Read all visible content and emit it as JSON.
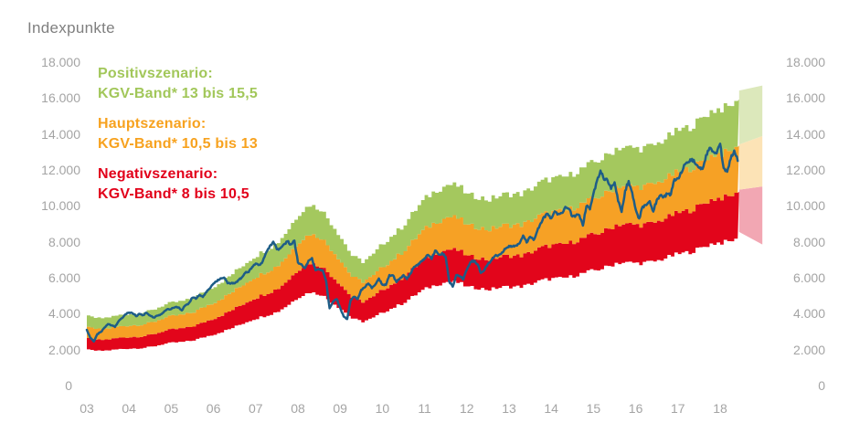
{
  "title": "Indexpunkte",
  "legend": [
    {
      "line1": "Positivszenario:",
      "line2": "KGV-Band* 13 bis 15,5",
      "color": "#a2c75a"
    },
    {
      "line1": "Hauptszenario:",
      "line2": "KGV-Band* 10,5 bis 13",
      "color": "#f7a21f"
    },
    {
      "line1": "Negativszenario:",
      "line2": "KGV-Band* 8 bis 10,5",
      "color": "#e2001a"
    }
  ],
  "chart_data": {
    "type": "area",
    "title": "Indexpunkte",
    "grid": "off",
    "x_axis": {
      "tick_labels": [
        "03",
        "04",
        "05",
        "06",
        "07",
        "08",
        "09",
        "10",
        "11",
        "12",
        "13",
        "14",
        "15",
        "16",
        "17",
        "18"
      ],
      "start_year": 2003,
      "range_years": [
        2003,
        2019.0
      ]
    },
    "y_axis": {
      "ticks": [
        18000,
        16000,
        14000,
        12000,
        10000,
        8000,
        6000,
        4000,
        2000,
        0
      ],
      "tick_labels": [
        "18.000",
        "16.000",
        "14.000",
        "12.000",
        "10.000",
        "8.000",
        "6.000",
        "4.000",
        "2.000",
        "0"
      ],
      "range": [
        0,
        18000
      ],
      "sides": "both"
    },
    "bands": [
      {
        "name": "negativszenario",
        "kgv_low": 8,
        "kgv_high": 10.5,
        "color": "#e2051b",
        "light_color": "#f2a7b3"
      },
      {
        "name": "hauptszenario",
        "kgv_low": 10.5,
        "kgv_high": 13,
        "color": "#f6a125",
        "light_color": "#fce3b6"
      },
      {
        "name": "positivszenario",
        "kgv_low": 13,
        "kgv_high": 15.5,
        "color": "#a4c85e",
        "light_color": "#dce8bb"
      }
    ],
    "earnings_base": {
      "description": "DAX forward earnings in index points; band bounds = value x KGV multiplier",
      "x": [
        2003.0,
        2003.25,
        2003.5,
        2003.75,
        2004.0,
        2004.25,
        2004.5,
        2004.75,
        2005.0,
        2005.25,
        2005.5,
        2005.75,
        2006.0,
        2006.25,
        2006.5,
        2006.75,
        2007.0,
        2007.25,
        2007.5,
        2007.75,
        2008.0,
        2008.25,
        2008.5,
        2008.75,
        2009.0,
        2009.25,
        2009.5,
        2009.75,
        2010.0,
        2010.25,
        2010.5,
        2010.75,
        2011.0,
        2011.25,
        2011.5,
        2011.75,
        2012.0,
        2012.25,
        2012.5,
        2012.75,
        2013.0,
        2013.25,
        2013.5,
        2013.75,
        2014.0,
        2014.25,
        2014.5,
        2014.75,
        2015.0,
        2015.25,
        2015.5,
        2015.75,
        2016.0,
        2016.25,
        2016.5,
        2016.75,
        2017.0,
        2017.25,
        2017.5,
        2017.75,
        2018.0,
        2018.25,
        2018.45
      ],
      "values": [
        245,
        242,
        248,
        252,
        255,
        262,
        272,
        285,
        295,
        305,
        318,
        335,
        355,
        385,
        415,
        440,
        465,
        495,
        520,
        560,
        615,
        655,
        640,
        580,
        525,
        470,
        448,
        465,
        510,
        550,
        585,
        625,
        670,
        710,
        725,
        710,
        680,
        685,
        670,
        675,
        685,
        695,
        710,
        725,
        740,
        755,
        765,
        775,
        800,
        830,
        855,
        845,
        850,
        865,
        870,
        885,
        915,
        940,
        955,
        975,
        995,
        1015,
        1030
      ]
    },
    "dax_line": {
      "name": "DAX",
      "color": "#1e5d87",
      "x_start": 2003.0,
      "x_step": 0.0833333,
      "values": [
        3100,
        2650,
        2450,
        2870,
        2980,
        3220,
        3420,
        3350,
        3260,
        3570,
        3750,
        3965,
        4060,
        4020,
        3860,
        3990,
        3920,
        4050,
        3895,
        3785,
        3890,
        3960,
        4130,
        4256,
        4255,
        4350,
        4348,
        4184,
        4460,
        4586,
        4886,
        4830,
        5044,
        4929,
        5193,
        5408,
        5674,
        5796,
        5970,
        6009,
        5692,
        5683,
        5682,
        5859,
        6004,
        6269,
        6309,
        6597,
        6789,
        6715,
        6917,
        7409,
        7765,
        8007,
        7584,
        7638,
        7861,
        8019,
        7870,
        8067,
        6851,
        6748,
        6535,
        6948,
        7096,
        6418,
        6480,
        6422,
        5831,
        4300,
        4669,
        4810,
        4338,
        3843,
        3700,
        4769,
        4940,
        4808,
        5332,
        5464,
        5675,
        5415,
        5626,
        5957,
        5609,
        5598,
        6154,
        6136,
        5758,
        5966,
        6148,
        5925,
        6229,
        6602,
        6688,
        6914,
        7077,
        7272,
        7041,
        7514,
        7293,
        7376,
        7159,
        5785,
        5502,
        6141,
        6088,
        5898,
        6444,
        6856,
        6947,
        6761,
        6264,
        6416,
        6772,
        6971,
        7216,
        7260,
        7405,
        7612,
        7776,
        7742,
        7795,
        7914,
        8349,
        7959,
        8276,
        8103,
        8594,
        9034,
        9405,
        9552,
        9306,
        9692,
        9556,
        9603,
        9943,
        9833,
        9407,
        9470,
        9474,
        8900,
        9981,
        9806,
        10694,
        11402,
        11966,
        11454,
        11414,
        10945,
        11309,
        10259,
        9660,
        10850,
        11382,
        10743,
        9798,
        9300,
        9966,
        10039,
        10263,
        9680,
        10337,
        10593,
        10511,
        10665,
        10640,
        11481,
        11535,
        11834,
        12313,
        12438,
        12615,
        12325,
        12118,
        12056,
        12829,
        13230,
        13024,
        12918,
        13460,
        12100,
        11900,
        12612,
        13080,
        12500
      ]
    },
    "forecast": {
      "x_start": 2018.45,
      "x_end": 2019.0,
      "boundary_start": [
        8550,
        10900,
        13420,
        16420
      ],
      "boundary_end": [
        7850,
        11080,
        13890,
        16700
      ]
    }
  }
}
